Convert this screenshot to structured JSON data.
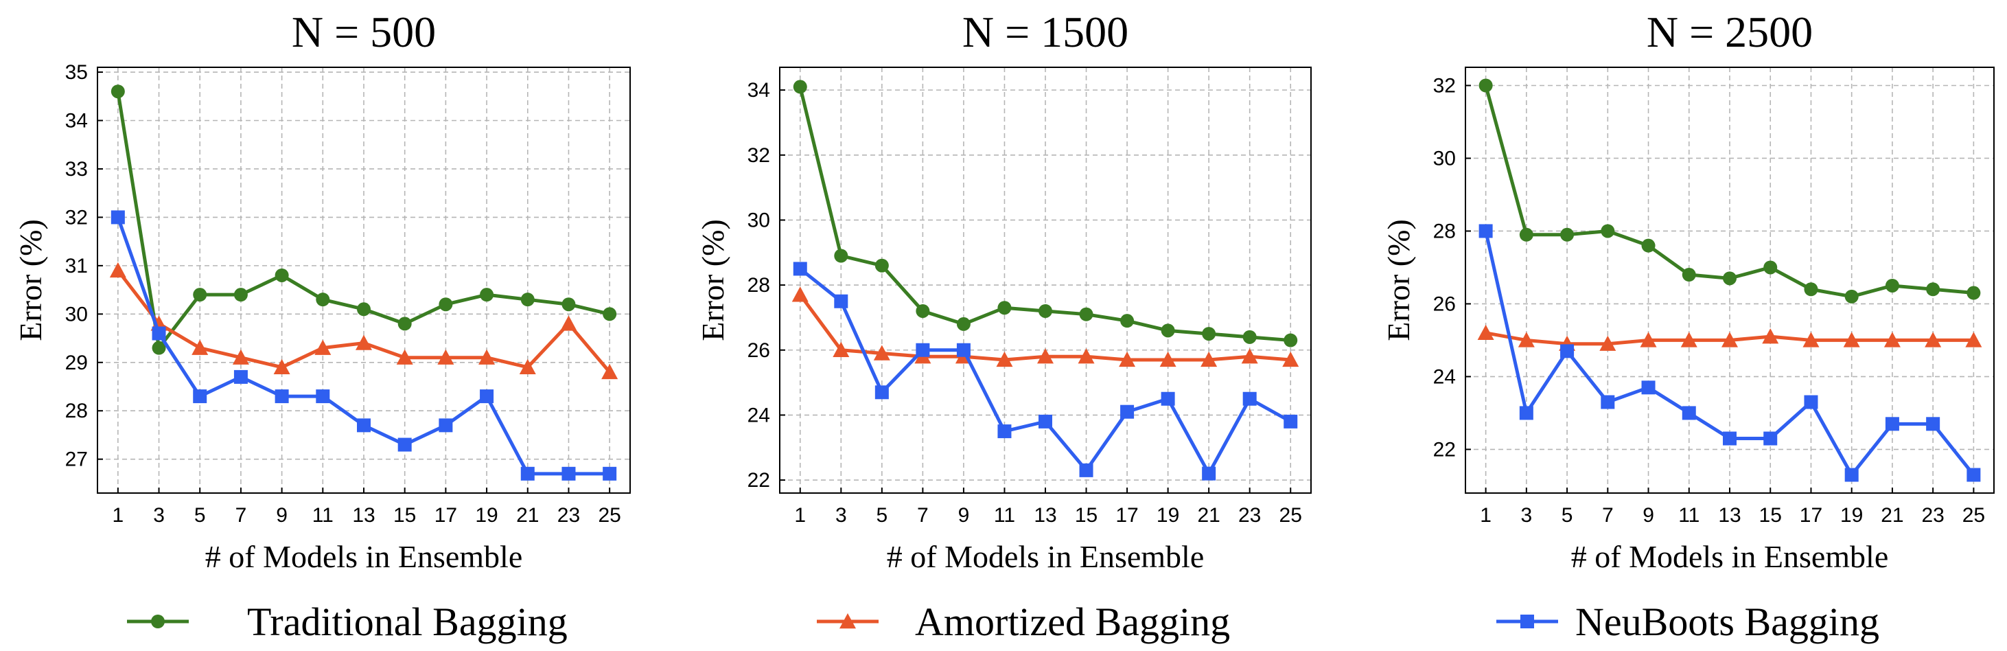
{
  "chart_data": [
    {
      "type": "line",
      "title": "N = 500",
      "xlabel": "# of Models in Ensemble",
      "ylabel": "Error (%)",
      "x": [
        1,
        3,
        5,
        7,
        9,
        11,
        13,
        15,
        17,
        19,
        21,
        23,
        25
      ],
      "xlim": [
        0,
        26
      ],
      "ylim": [
        26.3,
        35.1
      ],
      "yticks": [
        27,
        28,
        29,
        30,
        31,
        32,
        33,
        34,
        35
      ],
      "grid": true,
      "series": [
        {
          "name": "Traditional Bagging",
          "color": "#3a7d22",
          "marker": "circle",
          "values": [
            34.6,
            29.3,
            30.4,
            30.4,
            30.8,
            30.3,
            30.1,
            29.8,
            30.2,
            30.4,
            30.3,
            30.2,
            30.0
          ]
        },
        {
          "name": "Amortized Bagging",
          "color": "#e8562a",
          "marker": "triangle",
          "values": [
            30.9,
            29.8,
            29.3,
            29.1,
            28.9,
            29.3,
            29.4,
            29.1,
            29.1,
            29.1,
            28.9,
            29.8,
            28.8
          ]
        },
        {
          "name": "NeuBoots Bagging",
          "color": "#2f5ff0",
          "marker": "square",
          "values": [
            32.0,
            29.6,
            28.3,
            28.7,
            28.3,
            28.3,
            27.7,
            27.3,
            27.7,
            28.3,
            26.7,
            26.7,
            26.7
          ]
        }
      ]
    },
    {
      "type": "line",
      "title": "N = 1500",
      "xlabel": "# of Models in Ensemble",
      "ylabel": "Error (%)",
      "x": [
        1,
        3,
        5,
        7,
        9,
        11,
        13,
        15,
        17,
        19,
        21,
        23,
        25
      ],
      "xlim": [
        0,
        26
      ],
      "ylim": [
        21.6,
        34.7
      ],
      "yticks": [
        22,
        24,
        26,
        28,
        30,
        32,
        34
      ],
      "grid": true,
      "series": [
        {
          "name": "Traditional Bagging",
          "color": "#3a7d22",
          "marker": "circle",
          "values": [
            34.1,
            28.9,
            28.6,
            27.2,
            26.8,
            27.3,
            27.2,
            27.1,
            26.9,
            26.6,
            26.5,
            26.4,
            26.3
          ]
        },
        {
          "name": "Amortized Bagging",
          "color": "#e8562a",
          "marker": "triangle",
          "values": [
            27.7,
            26.0,
            25.9,
            25.8,
            25.8,
            25.7,
            25.8,
            25.8,
            25.7,
            25.7,
            25.7,
            25.8,
            25.7
          ]
        },
        {
          "name": "NeuBoots Bagging",
          "color": "#2f5ff0",
          "marker": "square",
          "values": [
            28.5,
            27.5,
            24.7,
            26.0,
            26.0,
            23.5,
            23.8,
            22.3,
            24.1,
            24.5,
            22.2,
            24.5,
            23.8
          ]
        }
      ]
    },
    {
      "type": "line",
      "title": "N = 2500",
      "xlabel": "# of Models in Ensemble",
      "ylabel": "Error (%)",
      "x": [
        1,
        3,
        5,
        7,
        9,
        11,
        13,
        15,
        17,
        19,
        21,
        23,
        25
      ],
      "xlim": [
        0,
        26
      ],
      "ylim": [
        20.8,
        32.5
      ],
      "yticks": [
        22,
        24,
        26,
        28,
        30,
        32
      ],
      "grid": true,
      "series": [
        {
          "name": "Traditional Bagging",
          "color": "#3a7d22",
          "marker": "circle",
          "values": [
            32.0,
            27.9,
            27.9,
            28.0,
            27.6,
            26.8,
            26.7,
            27.0,
            26.4,
            26.2,
            26.5,
            26.4,
            26.3
          ]
        },
        {
          "name": "Amortized Bagging",
          "color": "#e8562a",
          "marker": "triangle",
          "values": [
            25.2,
            25.0,
            24.9,
            24.9,
            25.0,
            25.0,
            25.0,
            25.1,
            25.0,
            25.0,
            25.0,
            25.0,
            25.0
          ]
        },
        {
          "name": "NeuBoots Bagging",
          "color": "#2f5ff0",
          "marker": "square",
          "values": [
            28.0,
            23.0,
            24.7,
            23.3,
            23.7,
            23.0,
            22.3,
            22.3,
            23.3,
            21.3,
            22.7,
            22.7,
            21.3
          ]
        }
      ]
    }
  ],
  "legend": {
    "placement": "bottom",
    "items": [
      {
        "label": "Traditional Bagging",
        "color": "#3a7d22",
        "marker": "circle"
      },
      {
        "label": "Amortized Bagging",
        "color": "#e8562a",
        "marker": "triangle"
      },
      {
        "label": "NeuBoots Bagging",
        "color": "#2f5ff0",
        "marker": "square"
      }
    ]
  }
}
